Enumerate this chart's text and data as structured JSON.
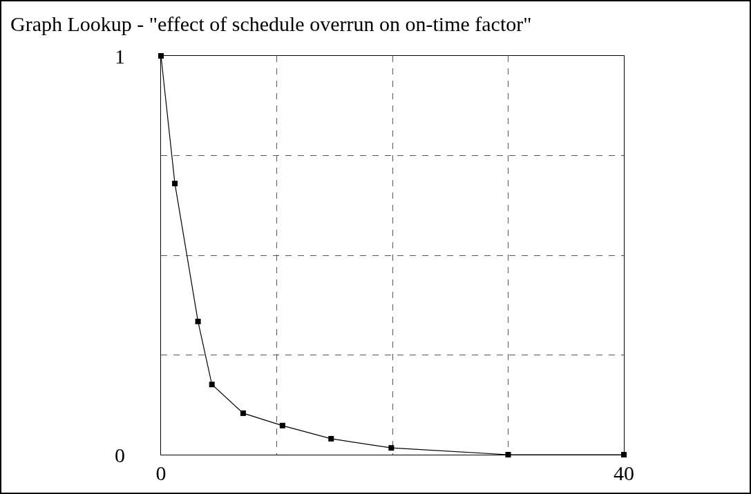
{
  "chart_data": {
    "type": "line",
    "title": "Graph Lookup - \"effect of schedule overrun on on-time factor\"",
    "x": [
      0,
      1.2,
      3.2,
      4.4,
      7.1,
      10.5,
      14.7,
      19.9,
      30,
      40
    ],
    "series": [
      {
        "color": "#000000",
        "values": [
          1,
          0.68,
          0.334,
          0.176,
          0.104,
          0.073,
          0.04,
          0.017,
          0,
          0
        ]
      }
    ],
    "xlim": [
      0,
      40
    ],
    "xticks": [
      0,
      {
        "value": 10,
        "label": null
      },
      {
        "value": 20,
        "label": null
      },
      {
        "value": 30,
        "label": null
      },
      40
    ],
    "ylim": [
      0,
      1
    ],
    "yticks": [
      0,
      {
        "value": 0.25,
        "label": null
      },
      {
        "value": 0.5,
        "label": null
      },
      {
        "value": 0.75,
        "label": null
      },
      1
    ],
    "grid": true,
    "legend": false,
    "marker": "square",
    "line_style": "solid"
  }
}
